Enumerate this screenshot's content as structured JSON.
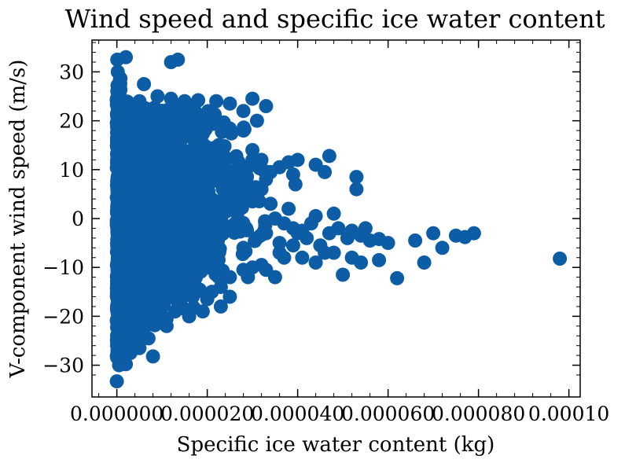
{
  "chart_data": {
    "type": "scatter",
    "title": "Wind speed and specific ice water content",
    "xlabel": "Specific ice water content (kg)",
    "ylabel": "V-component wind speed (m/s)",
    "xlim": [
      -5.5e-06,
      0.0001025
    ],
    "ylim": [
      -36.5,
      36.5
    ],
    "xticks": [
      0,
      2e-05,
      4e-05,
      6e-05,
      8e-05,
      0.0001
    ],
    "xtick_labels": [
      "0.000000",
      "0.000020",
      "0.000040",
      "0.000060",
      "0.000080",
      "0.00010"
    ],
    "yticks": [
      -30,
      -20,
      -10,
      0,
      10,
      20,
      30
    ],
    "ytick_labels": [
      "−30",
      "−20",
      "−10",
      "0",
      "10",
      "20",
      "30"
    ],
    "grid": false,
    "marker_color": "#0C5DA5",
    "series": [
      {
        "points": [
          [
            0.0,
            -33.3
          ],
          [
            1e-07,
            32.5
          ],
          [
            2e-07,
            30.0
          ],
          [
            5e-07,
            -30.0
          ],
          [
            2e-06,
            33.0
          ],
          [
            6e-06,
            27.5
          ],
          [
            1.2e-05,
            32.0
          ],
          [
            1.35e-05,
            32.5
          ],
          [
            8e-06,
            -28.2
          ],
          [
            2e-06,
            -29.8
          ],
          [
            3e-06,
            -27.5
          ],
          [
            5e-06,
            -26.5
          ],
          [
            7e-06,
            -24.5
          ],
          [
            1.1e-05,
            -22.0
          ],
          [
            1.5e-05,
            -18.5
          ],
          [
            1.9e-05,
            -19.0
          ],
          [
            2.3e-05,
            -18.0
          ],
          [
            2.5e-05,
            -12.0
          ],
          [
            2.8e-05,
            -10.5
          ],
          [
            3e-05,
            -10.0
          ],
          [
            3.2e-05,
            -9.5
          ],
          [
            3.3e-05,
            -10.5
          ],
          [
            3.5e-05,
            -12.0
          ],
          [
            3.7e-05,
            -8.0
          ],
          [
            4.1e-05,
            -8.0
          ],
          [
            4.4e-05,
            -9.0
          ],
          [
            4.6e-05,
            -7.0
          ],
          [
            4.8e-05,
            -7.0
          ],
          [
            5e-05,
            -11.5
          ],
          [
            5.2e-05,
            -8.0
          ],
          [
            5.4e-05,
            -9.0
          ],
          [
            5.8e-05,
            -8.5
          ],
          [
            6.2e-05,
            -12.2
          ],
          [
            6.8e-05,
            -9.0
          ],
          [
            7.2e-05,
            -6.0
          ],
          [
            7e-05,
            -3.0
          ],
          [
            7.5e-05,
            -3.5
          ],
          [
            7.7e-05,
            -3.8
          ],
          [
            7.9e-05,
            -3.0
          ],
          [
            9.8e-05,
            -8.2
          ],
          [
            6.6e-05,
            -4.5
          ],
          [
            6e-05,
            -5.0
          ],
          [
            5.6e-05,
            -4.5
          ],
          [
            5.5e-05,
            -2.0
          ],
          [
            5.2e-05,
            -2.5
          ],
          [
            4.9e-05,
            -2.0
          ],
          [
            4.7e-05,
            -3.0
          ],
          [
            4.8e-05,
            1.0
          ],
          [
            4.4e-05,
            0.5
          ],
          [
            4.1e-05,
            -2.5
          ],
          [
            3.9e-05,
            -2.0
          ],
          [
            3.8e-05,
            2.0
          ],
          [
            3.5e-05,
            0.0
          ],
          [
            3.3e-05,
            -3.0
          ],
          [
            3e-05,
            3.5
          ],
          [
            3.2e-05,
            6.0
          ],
          [
            3.3e-05,
            8.0
          ],
          [
            3.4e-05,
            9.5
          ],
          [
            3.6e-05,
            10.5
          ],
          [
            3.8e-05,
            11.5
          ],
          [
            4e-05,
            12.0
          ],
          [
            3.9e-05,
            9.0
          ],
          [
            3.95e-05,
            7.0
          ],
          [
            4.4e-05,
            11.0
          ],
          [
            4.6e-05,
            9.5
          ],
          [
            4.7e-05,
            12.8
          ],
          [
            5.3e-05,
            8.5
          ],
          [
            5.3e-05,
            6.0
          ],
          [
            3e-05,
            14.0
          ],
          [
            3.2e-05,
            12.0
          ],
          [
            3e-05,
            24.5
          ],
          [
            3.3e-05,
            23.0
          ],
          [
            2.8e-05,
            22.0
          ],
          [
            2.5e-05,
            23.5
          ],
          [
            2.2e-05,
            24.0
          ],
          [
            1.8e-05,
            24.2
          ],
          [
            1.5e-05,
            24.0
          ],
          [
            1.2e-05,
            24.5
          ],
          [
            9e-06,
            25.0
          ],
          [
            5e-06,
            24.0
          ],
          [
            9e-06,
            -21.0
          ],
          [
            1.4e-05,
            -17.0
          ],
          [
            1.7e-05,
            -18.2
          ],
          [
            2e-05,
            -16.5
          ],
          [
            2.1e-05,
            -15.0
          ],
          [
            2.8e-05,
            -6.0
          ],
          [
            2.6e-05,
            5.0
          ],
          [
            3.1e-05,
            -4.0
          ],
          [
            3.6e-05,
            -5.0
          ],
          [
            4.2e-05,
            -4.0
          ],
          [
            4.5e-05,
            -5.5
          ],
          [
            4.3e-05,
            -1.0
          ],
          [
            3.7e-05,
            -1.0
          ],
          [
            3.4e-05,
            3.0
          ],
          [
            2.8e-05,
            18.0
          ],
          [
            3.1e-05,
            20.0
          ],
          [
            3.6e-05,
            -7.0
          ],
          [
            3.9e-05,
            -5.5
          ],
          [
            4e-05,
            -3.0
          ],
          [
            5.4e-05,
            -3.5
          ],
          [
            5.8e-05,
            -4.2
          ],
          [
            5.1e-05,
            -4.0
          ],
          [
            2.9e-05,
            -12.0
          ],
          [
            2.3e-05,
            -14.0
          ],
          [
            2.5e-05,
            -16.0
          ],
          [
            1.6e-05,
            -20.0
          ],
          [
            1.1e-05,
            -20.5
          ],
          [
            6e-06,
            -22.5
          ]
        ],
        "bands": [
          {
            "x": [
              0.0,
              8e-07
            ],
            "y": [
              -28.5,
              29.0
            ],
            "n": 240
          },
          {
            "x": [
              0.0,
              2.5e-06
            ],
            "y": [
              -27.0,
              24.0
            ],
            "n": 340
          },
          {
            "x": [
              0.0,
              5e-06
            ],
            "y": [
              -24.5,
              23.0
            ],
            "n": 320
          },
          {
            "x": [
              0.0,
              9e-06
            ],
            "y": [
              -22.0,
              23.0
            ],
            "n": 320
          },
          {
            "x": [
              0.0,
              1.4e-05
            ],
            "y": [
              -19.0,
              23.0
            ],
            "n": 300
          },
          {
            "x": [
              0.0,
              1.9e-05
            ],
            "y": [
              -16.0,
              22.5
            ],
            "n": 260
          },
          {
            "x": [
              0.0,
              2.4e-05
            ],
            "y": [
              -12.0,
              22.0
            ],
            "n": 220
          },
          {
            "x": [
              0.0,
              2.9e-05
            ],
            "y": [
              -8.0,
              19.0
            ],
            "n": 180
          },
          {
            "x": [
              0.0,
              3.3e-05
            ],
            "y": [
              -5.0,
              12.0
            ],
            "n": 120
          }
        ]
      }
    ]
  }
}
